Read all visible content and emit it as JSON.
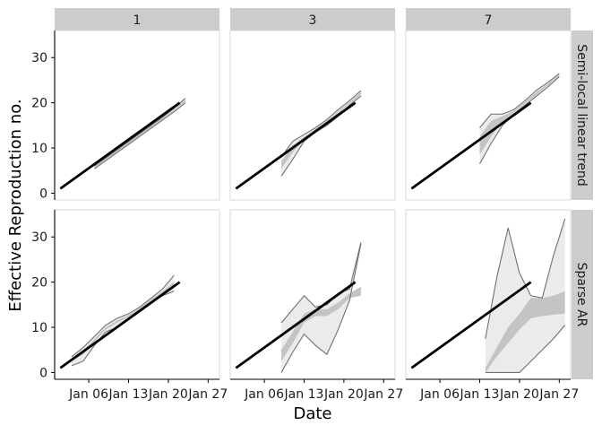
{
  "chart_data": {
    "type": "line",
    "title": "",
    "xlabel": "Date",
    "ylabel": "Effective Reproduction no.",
    "x_ticks": [
      "Jan 06",
      "Jan 13",
      "Jan 20",
      "Jan 27"
    ],
    "x_range": [
      "2020-12-31",
      "2021-01-29"
    ],
    "y_ticks": [
      0,
      10,
      20,
      30
    ],
    "ylim": [
      -1.5,
      36
    ],
    "grid": false,
    "col_strips": [
      "1",
      "3",
      "7"
    ],
    "row_strips": [
      "Semi-local linear trend",
      "Sparse AR"
    ],
    "true_line": {
      "color": "#000000",
      "points": [
        {
          "x": "2021-01-01",
          "y": 1
        },
        {
          "x": "2021-01-22",
          "y": 20
        }
      ]
    },
    "panels": [
      {
        "row": "Semi-local linear trend",
        "col": "1",
        "x": [
          "2021-01-07",
          "2021-01-09",
          "2021-01-11",
          "2021-01-13",
          "2021-01-15",
          "2021-01-17",
          "2021-01-19",
          "2021-01-21",
          "2021-01-23"
        ],
        "outer_lower": [
          5.4,
          7.2,
          9.0,
          10.8,
          12.6,
          14.4,
          16.2,
          18.0,
          20.0
        ],
        "outer_upper": [
          6.0,
          7.8,
          9.6,
          11.4,
          13.2,
          15.0,
          16.8,
          18.8,
          21.0
        ],
        "inner_lower": [
          5.6,
          7.4,
          9.2,
          11.0,
          12.8,
          14.6,
          16.4,
          18.3,
          20.3
        ],
        "inner_upper": [
          5.8,
          7.6,
          9.4,
          11.2,
          13.0,
          14.8,
          16.6,
          18.5,
          20.7
        ]
      },
      {
        "row": "Semi-local linear trend",
        "col": "3",
        "x": [
          "2021-01-09",
          "2021-01-11",
          "2021-01-13",
          "2021-01-15",
          "2021-01-17",
          "2021-01-19",
          "2021-01-21",
          "2021-01-23"
        ],
        "outer_lower": [
          3.8,
          7.5,
          11.5,
          13.5,
          15.0,
          17.0,
          19.5,
          21.5
        ],
        "outer_upper": [
          8.0,
          11.5,
          13.0,
          14.5,
          16.3,
          18.5,
          20.5,
          22.7
        ],
        "inner_lower": [
          5.5,
          9.0,
          12.0,
          13.8,
          15.5,
          17.6,
          19.8,
          21.8
        ],
        "inner_upper": [
          7.0,
          10.5,
          12.5,
          14.2,
          16.0,
          18.1,
          20.2,
          22.3
        ]
      },
      {
        "row": "Semi-local linear trend",
        "col": "7",
        "x": [
          "2021-01-13",
          "2021-01-15",
          "2021-01-17",
          "2021-01-19",
          "2021-01-21",
          "2021-01-23",
          "2021-01-25",
          "2021-01-27"
        ],
        "outer_lower": [
          6.5,
          11.0,
          15.0,
          17.5,
          19.5,
          21.5,
          23.5,
          25.8
        ],
        "outer_upper": [
          14.5,
          17.5,
          17.5,
          18.5,
          20.5,
          22.8,
          24.5,
          26.5
        ],
        "inner_lower": [
          8.5,
          12.5,
          15.8,
          17.8,
          19.8,
          21.8,
          23.8,
          26.0
        ],
        "inner_upper": [
          12.5,
          16.0,
          17.0,
          18.2,
          20.2,
          22.4,
          24.2,
          26.3
        ]
      },
      {
        "row": "Sparse AR",
        "col": "1",
        "x": [
          "2021-01-03",
          "2021-01-05",
          "2021-01-07",
          "2021-01-09",
          "2021-01-11",
          "2021-01-13",
          "2021-01-15",
          "2021-01-17",
          "2021-01-19",
          "2021-01-21"
        ],
        "outer_lower": [
          1.5,
          2.5,
          6.0,
          9.0,
          10.0,
          12.0,
          13.5,
          15.5,
          17.0,
          18.0
        ],
        "outer_upper": [
          3.5,
          5.5,
          8.0,
          10.5,
          12.0,
          13.0,
          14.5,
          16.5,
          18.5,
          21.5
        ],
        "inner_lower": [
          2.5,
          4.0,
          6.8,
          9.5,
          11.0,
          12.3,
          13.9,
          15.9,
          17.6,
          19.0
        ],
        "inner_upper": [
          3.0,
          4.8,
          7.4,
          10.0,
          11.5,
          12.7,
          14.2,
          16.2,
          18.0,
          20.0
        ]
      },
      {
        "row": "Sparse AR",
        "col": "3",
        "x": [
          "2021-01-09",
          "2021-01-11",
          "2021-01-13",
          "2021-01-15",
          "2021-01-17",
          "2021-01-19",
          "2021-01-21",
          "2021-01-23"
        ],
        "outer_lower": [
          0.0,
          4.5,
          8.5,
          6.0,
          4.0,
          9.5,
          16.0,
          28.5
        ],
        "outer_upper": [
          11.0,
          14.0,
          17.0,
          14.5,
          15.0,
          17.5,
          18.5,
          28.8
        ],
        "inner_lower": [
          2.5,
          6.5,
          11.0,
          12.5,
          12.5,
          14.0,
          16.5,
          17.0
        ],
        "inner_upper": [
          5.0,
          9.0,
          13.0,
          14.0,
          14.0,
          15.5,
          17.5,
          19.0
        ]
      },
      {
        "row": "Sparse AR",
        "col": "7",
        "x": [
          "2021-01-14",
          "2021-01-16",
          "2021-01-18",
          "2021-01-20",
          "2021-01-22",
          "2021-01-24",
          "2021-01-26",
          "2021-01-28"
        ],
        "outer_lower": [
          0.0,
          0.0,
          0.0,
          0.0,
          2.5,
          5.0,
          7.5,
          10.5
        ],
        "outer_upper": [
          7.5,
          21.0,
          32.0,
          22.0,
          17.0,
          16.5,
          26.0,
          34.0
        ],
        "inner_lower": [
          0.0,
          3.5,
          6.5,
          9.5,
          12.0,
          12.5,
          12.8,
          13.0
        ],
        "inner_upper": [
          1.0,
          5.5,
          10.0,
          13.0,
          16.5,
          16.5,
          17.0,
          18.0
        ]
      }
    ],
    "colors": {
      "strip_background": "#cccccc",
      "panel_border": "#d9d9d9",
      "outer_band": "#ebebeb",
      "inner_band": "#c4c4c4",
      "band_outline": "#707070",
      "true_line": "#000000",
      "axis": "#000000"
    }
  }
}
